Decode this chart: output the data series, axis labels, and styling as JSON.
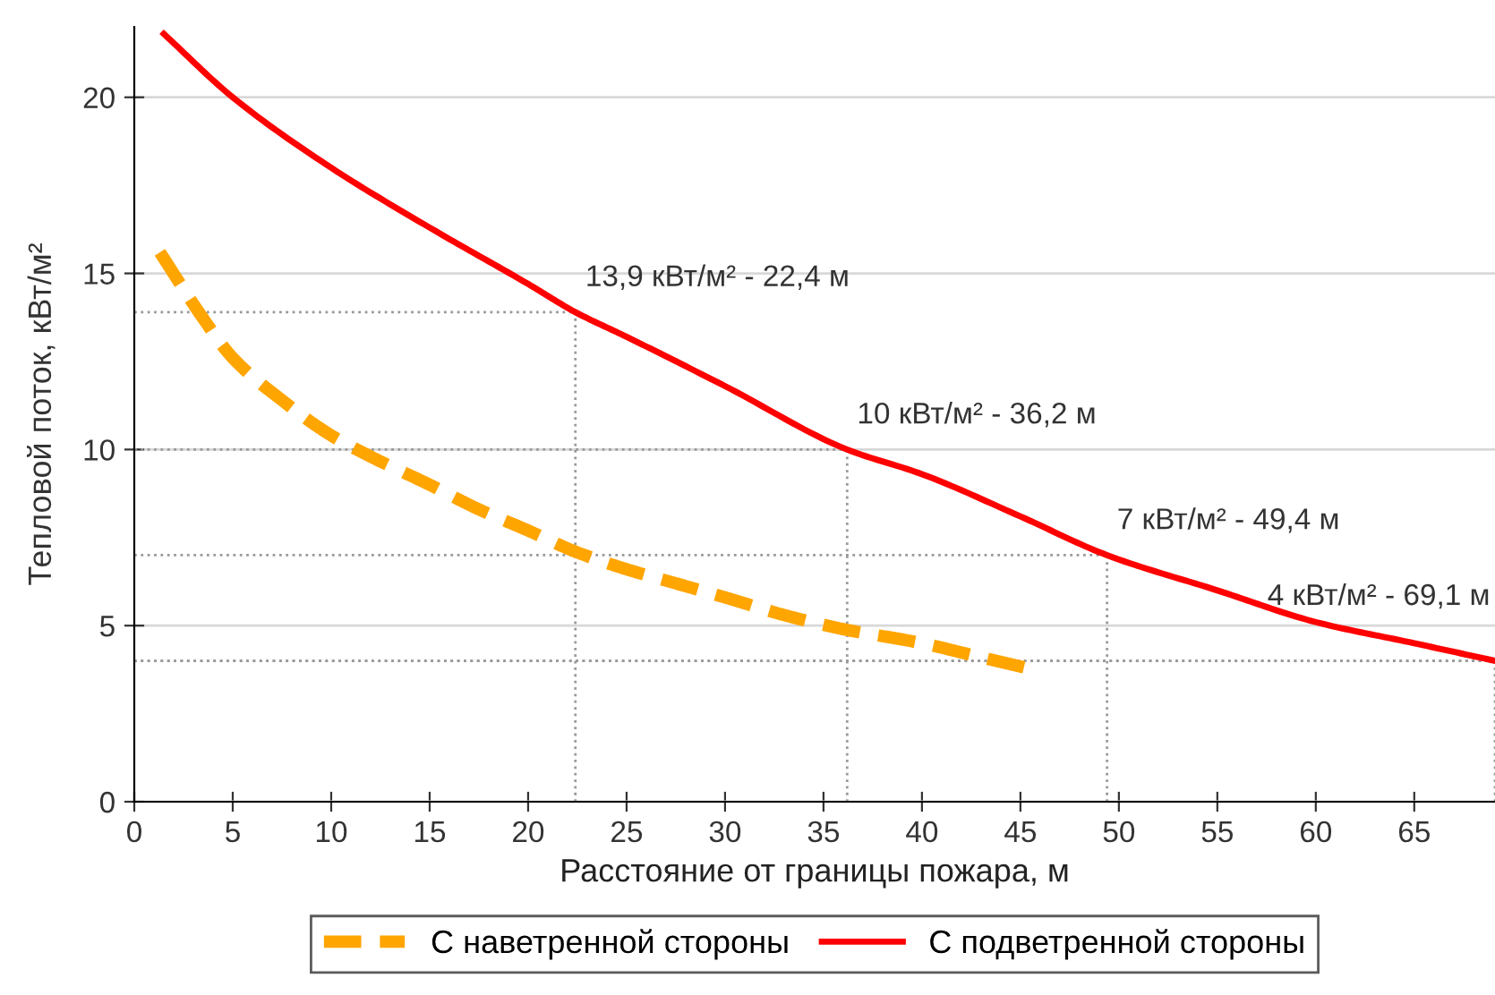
{
  "chart_data": {
    "type": "line",
    "xlabel": "Расстояние от границы пожара, м",
    "ylabel": "Тепловой поток, кВт/м²",
    "xlim": [
      0,
      69.1
    ],
    "xticks": [
      0,
      5,
      10,
      15,
      20,
      25,
      30,
      35,
      40,
      45,
      50,
      55,
      60,
      65
    ],
    "ylim": [
      0,
      22
    ],
    "yticks": [
      0,
      5,
      10,
      15,
      20
    ],
    "grid": "y",
    "legend": "bottom",
    "ref_lines": [
      {
        "axis": "y",
        "value": 4,
        "color": "#999999",
        "line_style": "dotted"
      }
    ],
    "series": [
      {
        "name": "С наветренной стороны",
        "color": "#ffa500",
        "line_style": "dashed",
        "x": [
          1.3,
          3.4,
          5,
          7.5,
          10,
          12,
          15,
          17.5,
          20,
          22.4,
          25,
          27.5,
          30,
          33,
          36,
          40,
          43,
          45.3
        ],
        "values": [
          15.6,
          13.8,
          12.6,
          11.4,
          10.4,
          9.8,
          9,
          8.3,
          7.7,
          7.1,
          6.6,
          6.2,
          5.8,
          5.3,
          4.9,
          4.5,
          4.1,
          3.8
        ]
      },
      {
        "name": "С подветренной стороны",
        "color": "#ff0000",
        "line_style": "solid",
        "x": [
          1.5,
          5,
          10,
          15,
          20,
          22.4,
          25,
          30,
          36.2,
          40,
          45,
          49.4,
          55,
          60,
          65,
          69.1
        ],
        "values": [
          21.8,
          20,
          18,
          16.3,
          14.7,
          13.9,
          13.2,
          11.8,
          10,
          9.3,
          8.1,
          7,
          6,
          5.1,
          4.5,
          4
        ]
      }
    ],
    "annotations": [
      {
        "text": "13,9 кВт/м² - 22,4 м",
        "x": 22.4,
        "y": 13.9
      },
      {
        "text": "10 кВт/м² - 36,2 м",
        "x": 36.2,
        "y": 10
      },
      {
        "text": "7 кВт/м² - 49,4 м",
        "x": 49.4,
        "y": 7
      },
      {
        "text": "4 кВт/м² - 69,1 м",
        "x": 69.1,
        "y": 4
      }
    ]
  }
}
